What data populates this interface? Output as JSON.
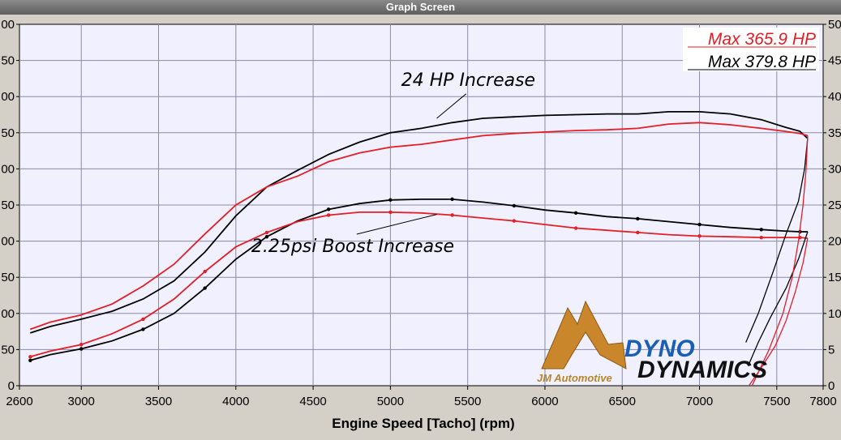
{
  "window": {
    "title": "Graph Screen"
  },
  "chart_data": {
    "type": "line",
    "xlabel": "Engine Speed [Tacho] (rpm)",
    "xlim": [
      2600,
      7800
    ],
    "x_ticks": [
      "2600",
      "3000",
      "3500",
      "4000",
      "4500",
      "5000",
      "5500",
      "6000",
      "6500",
      "7000",
      "7500",
      "7800"
    ],
    "ylim": [
      0,
      500
    ],
    "y_ticks_left": [
      "0",
      "50",
      "00",
      "50",
      "00",
      "50",
      "00",
      "50",
      "00",
      "50",
      "00"
    ],
    "y_ticks_right": [
      "0",
      "5",
      "10",
      "15",
      "20",
      "25",
      "30",
      "35",
      "40",
      "45",
      "50"
    ],
    "grid": true,
    "max_labels": [
      {
        "text": "Max 365.9 HP",
        "color": "#e41e26"
      },
      {
        "text": "Max 379.8 HP",
        "color": "#000000"
      }
    ],
    "annotations": [
      {
        "text": "24 HP Increase",
        "x": 5070,
        "y": 415,
        "arrow_to": [
          5300,
          370
        ]
      },
      {
        "text": "2.25psi Boost Increase",
        "x": 4100,
        "y": 185,
        "arrow_to": [
          5300,
          237
        ]
      }
    ],
    "series": [
      {
        "color": "#000000",
        "kind": "power",
        "x": [
          2670,
          2800,
          3000,
          3200,
          3400,
          3600,
          3800,
          4000,
          4200,
          4400,
          4600,
          4800,
          5000,
          5200,
          5400,
          5600,
          5800,
          6000,
          6200,
          6400,
          6600,
          6800,
          7000,
          7200,
          7400,
          7550,
          7650,
          7700
        ],
        "y": [
          73,
          82,
          92,
          103,
          120,
          145,
          185,
          235,
          275,
          298,
          320,
          337,
          350,
          356,
          364,
          370,
          372,
          374,
          375,
          376,
          376,
          379,
          379,
          376,
          368,
          358,
          352,
          342
        ]
      },
      {
        "color": "#e41e26",
        "kind": "power",
        "x": [
          2670,
          2800,
          3000,
          3200,
          3400,
          3600,
          3800,
          4000,
          4200,
          4400,
          4600,
          4800,
          5000,
          5200,
          5400,
          5600,
          5800,
          6000,
          6200,
          6400,
          6600,
          6800,
          7000,
          7200,
          7400,
          7550,
          7650,
          7700
        ],
        "y": [
          78,
          88,
          98,
          113,
          138,
          168,
          210,
          250,
          275,
          290,
          310,
          322,
          330,
          334,
          340,
          346,
          349,
          351,
          353,
          354,
          356,
          362,
          364,
          361,
          356,
          352,
          349,
          346
        ]
      },
      {
        "color": "#000000",
        "kind": "boost",
        "x": [
          2670,
          2800,
          3000,
          3200,
          3400,
          3600,
          3800,
          4000,
          4200,
          4400,
          4600,
          4800,
          5000,
          5200,
          5400,
          5600,
          5800,
          6000,
          6200,
          6400,
          6600,
          6800,
          7000,
          7200,
          7400,
          7550,
          7650,
          7700
        ],
        "y": [
          35,
          43,
          51,
          62,
          78,
          100,
          135,
          175,
          206,
          228,
          244,
          252,
          257,
          258,
          258,
          254,
          249,
          243,
          239,
          234,
          231,
          227,
          223,
          219,
          216,
          214,
          213,
          213
        ]
      },
      {
        "color": "#e41e26",
        "kind": "boost",
        "x": [
          2670,
          2800,
          3000,
          3200,
          3400,
          3600,
          3800,
          4000,
          4200,
          4400,
          4600,
          4800,
          5000,
          5200,
          5400,
          5600,
          5800,
          6000,
          6200,
          6400,
          6600,
          6800,
          7000,
          7200,
          7400,
          7550,
          7650,
          7700
        ],
        "y": [
          40,
          48,
          57,
          72,
          92,
          120,
          158,
          192,
          212,
          227,
          236,
          240,
          240,
          239,
          236,
          232,
          228,
          223,
          218,
          215,
          212,
          209,
          207,
          206,
          205,
          205,
          205,
          204
        ]
      },
      {
        "color": "#000000",
        "kind": "rundown",
        "x": [
          7700,
          7680,
          7640,
          7560,
          7480,
          7380,
          7300
        ],
        "y": [
          342,
          300,
          255,
          210,
          160,
          100,
          60
        ]
      },
      {
        "color": "#000000",
        "kind": "rundown",
        "x": [
          7700,
          7640,
          7560,
          7460,
          7380,
          7320
        ],
        "y": [
          213,
          175,
          135,
          95,
          60,
          30
        ]
      },
      {
        "color": "#e41e26",
        "kind": "rundown",
        "x": [
          7700,
          7690,
          7670,
          7640,
          7600,
          7540,
          7450,
          7340
        ],
        "y": [
          346,
          300,
          250,
          200,
          150,
          100,
          50,
          0
        ]
      },
      {
        "color": "#e41e26",
        "kind": "rundown",
        "x": [
          7700,
          7670,
          7620,
          7560,
          7490,
          7400,
          7320
        ],
        "y": [
          204,
          170,
          130,
          90,
          55,
          25,
          0
        ]
      }
    ]
  },
  "logos": {
    "jm_text": "JM Automotive",
    "dyno_line1": "DYNO",
    "dyno_line2": "DYNAMICS",
    "jm_color": "#b8862c",
    "dyno_blue": "#1a5fb4",
    "dyno_red": "#e41e26"
  }
}
